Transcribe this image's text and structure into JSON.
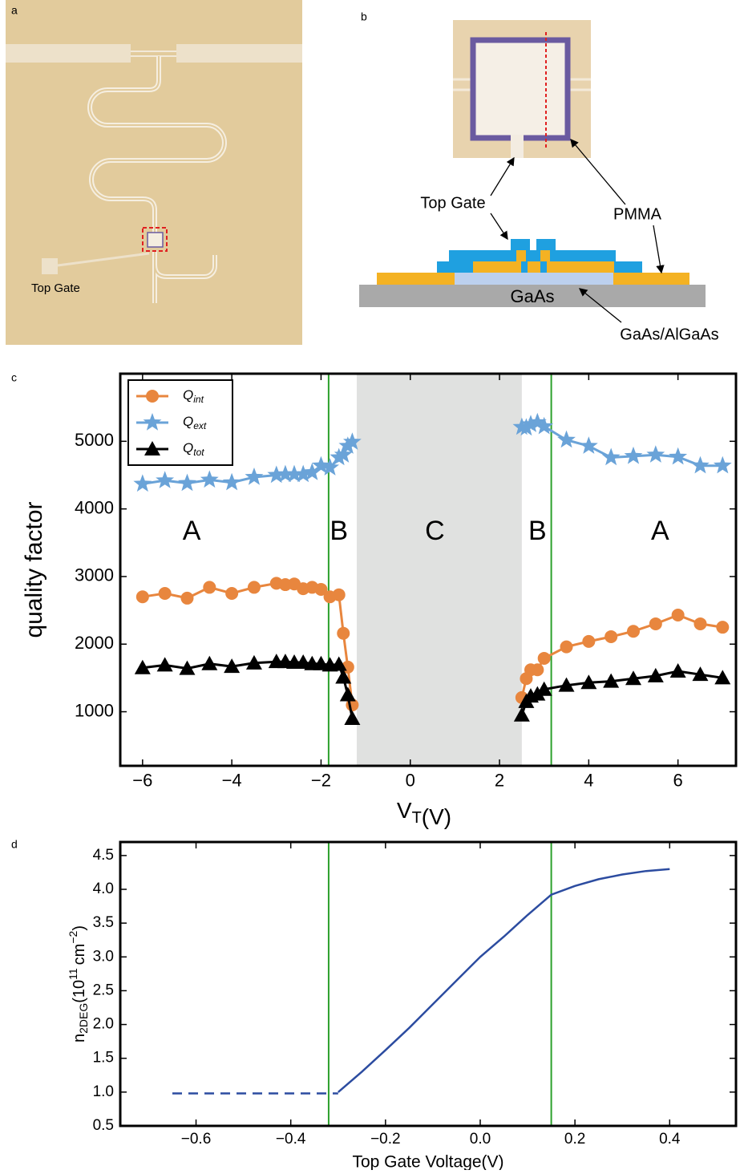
{
  "diagram_a": {
    "panel_label": "a",
    "top_gate_label": "Top Gate"
  },
  "diagram_b": {
    "panel_label": "b",
    "top_gate_label": "Top Gate",
    "pmma_label": "PMMA",
    "substrate_label": "GaAs",
    "heterostructure_label": "GaAs/AlGaAs"
  },
  "chart_data": [
    {
      "type": "scatter-line",
      "panel_label": "c",
      "ylabel": "quality factor",
      "xlabel": {
        "text": "V",
        "sub": "T",
        "unit": "(V)"
      },
      "xlim": [
        -6.5,
        7.3
      ],
      "ylim": [
        200,
        6000
      ],
      "xticks": [
        {
          "value": -6,
          "label": "−6"
        },
        {
          "value": -4,
          "label": "−4"
        },
        {
          "value": -2,
          "label": "−2"
        },
        0,
        2,
        4,
        6
      ],
      "yticks": [
        1000,
        2000,
        3000,
        4000,
        5000
      ],
      "shaded_span": [
        -1.2,
        2.5
      ],
      "shade_color": "#e0e1e0",
      "vlines": [
        -1.83,
        3.16
      ],
      "vline_color": "#2ca02c",
      "annotations": [
        {
          "text": "A",
          "x": -4.9,
          "y": 3650
        },
        {
          "text": "B",
          "x": -1.6,
          "y": 3650
        },
        {
          "text": "C",
          "x": 0.55,
          "y": 3650
        },
        {
          "text": "B",
          "x": 2.85,
          "y": 3650
        },
        {
          "text": "A",
          "x": 5.6,
          "y": 3650
        }
      ],
      "legend": "upper left",
      "x": [
        -6,
        -5.5,
        -5,
        -4.5,
        -4,
        -3.5,
        -3,
        -2.8,
        -2.6,
        -2.4,
        -2.2,
        -2,
        -1.8,
        -1.6,
        -1.5,
        -1.4,
        -1.3,
        2.5,
        2.6,
        2.7,
        2.85,
        3,
        3.5,
        4,
        4.5,
        5,
        5.5,
        6,
        6.5,
        7
      ],
      "series": [
        {
          "name": "Q",
          "name_sub": "int",
          "color": "#e8863e",
          "marker": "circle",
          "values": [
            2700,
            2750,
            2680,
            2840,
            2750,
            2840,
            2900,
            2880,
            2890,
            2820,
            2840,
            2810,
            2700,
            2730,
            2160,
            1660,
            1100,
            1210,
            1490,
            1620,
            1620,
            1790,
            1960,
            2040,
            2110,
            2190,
            2300,
            2430,
            2300,
            2250
          ]
        },
        {
          "name": "Q",
          "name_sub": "ext",
          "color": "#6aa3d8",
          "marker": "star",
          "values": [
            4370,
            4420,
            4380,
            4430,
            4390,
            4470,
            4500,
            4510,
            4510,
            4510,
            4540,
            4640,
            4610,
            4760,
            4800,
            4930,
            4990,
            5210,
            5200,
            5250,
            5280,
            5220,
            5020,
            4930,
            4760,
            4780,
            4800,
            4770,
            4640,
            4640
          ]
        },
        {
          "name": "Q",
          "name_sub": "tot",
          "color": "#000000",
          "marker": "triangle",
          "values": [
            1650,
            1690,
            1640,
            1710,
            1670,
            1720,
            1740,
            1740,
            1730,
            1730,
            1710,
            1710,
            1690,
            1700,
            1510,
            1250,
            900,
            950,
            1150,
            1230,
            1260,
            1330,
            1390,
            1430,
            1450,
            1490,
            1530,
            1600,
            1550,
            1500
          ]
        }
      ]
    },
    {
      "type": "line",
      "panel_label": "d",
      "xlabel": "Top Gate Voltage(V)",
      "ylabel": {
        "base": "n",
        "sub": "2DEG",
        "open": "(10",
        "exp": "11",
        "unit": "cm",
        "unit_exp": "−2",
        "close": ")"
      },
      "xlim": [
        -0.76,
        0.54
      ],
      "ylim": [
        0.5,
        4.7
      ],
      "xticks": [
        {
          "value": -0.6,
          "label": "−0.6"
        },
        {
          "value": -0.4,
          "label": "−0.4"
        },
        {
          "value": -0.2,
          "label": "−0.2"
        },
        {
          "value": 0,
          "label": "0.0"
        },
        0.2,
        0.4
      ],
      "yticks": [
        0.5,
        {
          "value": 1,
          "label": "1.0"
        },
        1.5,
        {
          "value": 2,
          "label": "2.0"
        },
        2.5,
        {
          "value": 3,
          "label": "3.0"
        },
        3.5,
        {
          "value": 4,
          "label": "4.0"
        },
        4.5
      ],
      "vlines": [
        -0.32,
        0.15
      ],
      "vline_color": "#2ca02c",
      "series": [
        {
          "color": "#2c4ca0",
          "dashed": true,
          "x": [
            -0.65,
            -0.3
          ],
          "values": [
            0.98,
            0.98
          ]
        },
        {
          "color": "#2c4ca0",
          "dashed": false,
          "x": [
            -0.3,
            -0.25,
            -0.2,
            -0.15,
            -0.1,
            -0.05,
            0,
            0.05,
            0.1,
            0.15,
            0.2,
            0.25,
            0.3,
            0.35,
            0.4
          ],
          "values": [
            1.0,
            1.3,
            1.62,
            1.95,
            2.3,
            2.65,
            3.0,
            3.3,
            3.62,
            3.92,
            4.05,
            4.15,
            4.22,
            4.27,
            4.3
          ]
        }
      ]
    }
  ]
}
